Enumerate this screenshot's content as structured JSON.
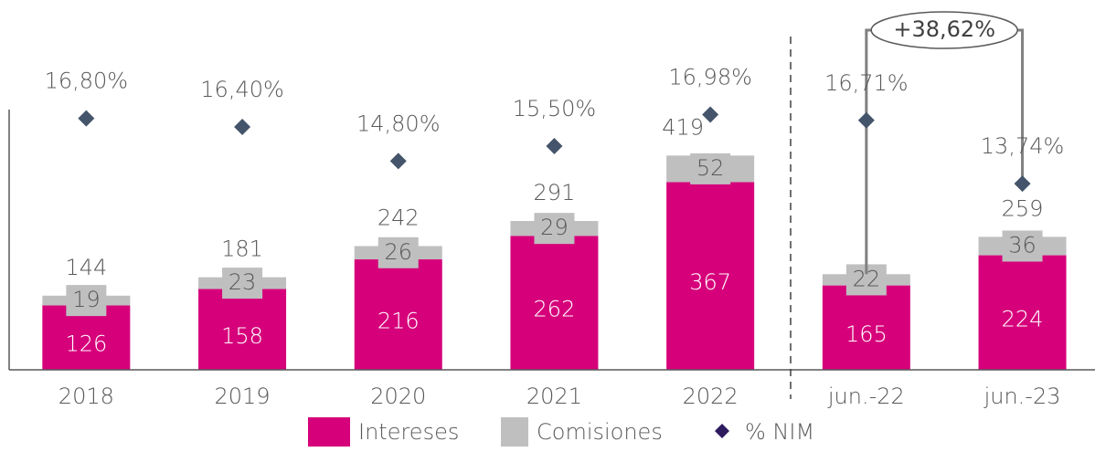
{
  "chart_data": {
    "type": "bar",
    "categories": [
      "2018",
      "2019",
      "2020",
      "2021",
      "2022",
      "jun.-22",
      "jun.-23"
    ],
    "series": [
      {
        "name": "Intereses",
        "color": "#d6007b",
        "values": [
          126,
          158,
          216,
          262,
          367,
          165,
          224
        ]
      },
      {
        "name": "Comisiones",
        "color": "#bfbfbf",
        "values": [
          19,
          23,
          26,
          29,
          52,
          22,
          36
        ]
      },
      {
        "name": "% NIM",
        "color": "#44546a",
        "axis": "y2",
        "values": [
          16.8,
          16.4,
          14.8,
          15.5,
          16.98,
          16.71,
          13.74
        ],
        "value_labels": [
          "16,80%",
          "16,40%",
          "14,80%",
          "15,50%",
          "16,98%",
          "16,71%",
          "13,74%"
        ]
      }
    ],
    "totals": [
      144,
      181,
      242,
      291,
      419,
      null,
      259
    ],
    "annotation": "+38,62%",
    "ylim": [
      0,
      700
    ],
    "y2lim": [
      5,
      21.8
    ]
  }
}
